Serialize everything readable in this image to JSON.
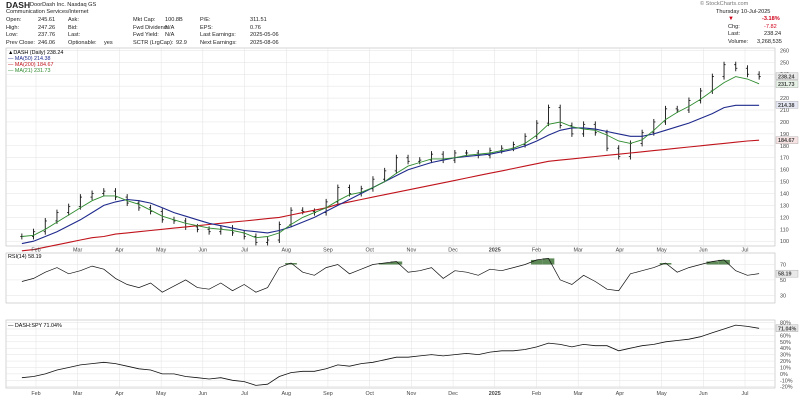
{
  "header": {
    "symbol": "DASH",
    "company": "DoorDash Inc.  Nasdaq GS",
    "sector": "Communication Services/Internet",
    "watermark": "© StockCharts.com",
    "date": "Thursday 10-Jul-2025",
    "col1": [
      {
        "label": "Open:",
        "value": "245.61"
      },
      {
        "label": "High:",
        "value": "247.26"
      },
      {
        "label": "Low:",
        "value": "237.76"
      },
      {
        "label": "Prev Close:",
        "value": "246.06"
      }
    ],
    "col2": [
      {
        "label": "Ask:",
        "value": ""
      },
      {
        "label": "Bid:",
        "value": ""
      },
      {
        "label": "Last:",
        "value": ""
      },
      {
        "label": "Optionable:",
        "value": "yes"
      }
    ],
    "col3": [
      {
        "label": "Mkt Cap:",
        "value": "100.8B"
      },
      {
        "label": "Fwd Dividend:",
        "value": "N/A"
      },
      {
        "label": "Fwd Yield:",
        "value": "N/A"
      },
      {
        "label": "SCTR (LrgCap):",
        "value": "92.9"
      }
    ],
    "col4": [
      {
        "label": "P/E:",
        "value": "311.51"
      },
      {
        "label": "EPS:",
        "value": "0.76"
      },
      {
        "label": "Last Earnings:",
        "value": "2025-05-06"
      },
      {
        "label": "Next Earnings:",
        "value": "2025-08-06"
      }
    ],
    "col5": [
      {
        "label": "",
        "value": "-3.18%"
      },
      {
        "label": "Chg:",
        "value": "-7.82"
      },
      {
        "label": "Last:",
        "value": "238.24"
      },
      {
        "label": "Volume:",
        "value": "3,268,535"
      }
    ],
    "down_color": "#d0021b"
  },
  "price_legend": [
    {
      "text": "▲DASH (Daily) 238.24",
      "color": "#000000"
    },
    {
      "text": "— MA(50) 214.38",
      "color": "#1f2a8c"
    },
    {
      "text": "— MA(200) 184.67",
      "color": "#c0141c"
    },
    {
      "text": "— MA(21) 231.73",
      "color": "#2e8b2e"
    }
  ],
  "rsi_legend": {
    "text": "RSI(14) 58.19",
    "color": "#000000"
  },
  "ratio_legend": {
    "text": "— DASH:SPY 71.04%",
    "color": "#000000"
  },
  "price_badges": [
    {
      "text": "238.24",
      "value": 238.24,
      "bg": "#e8e8e8",
      "fg": "#000000"
    },
    {
      "text": "231.73",
      "value": 231.73,
      "bg": "#e6f1e6",
      "fg": "#2e8b2e"
    },
    {
      "text": "214.38",
      "value": 214.38,
      "bg": "#e6e8f5",
      "fg": "#1f2a8c"
    },
    {
      "text": "184.67",
      "value": 184.67,
      "bg": "#f7e3e3",
      "fg": "#c0141c"
    }
  ],
  "rsi_badge": {
    "text": "58.19",
    "value": 58.19
  },
  "ratio_badge": {
    "text": "71.04%",
    "value": 71.04
  },
  "colors": {
    "candle": "#111111",
    "ma50": "#1f2a8c",
    "ma200": "#c0141c",
    "ma21": "#2e8b2e",
    "rsi_fill": "#5e8a57",
    "ratio": "#111111"
  },
  "chart_data": {
    "type": "line",
    "x_months": [
      "Feb",
      "Mar",
      "Apr",
      "May",
      "Jun",
      "Jul",
      "Aug",
      "Sep",
      "Oct",
      "Nov",
      "Dec",
      "2025",
      "Feb",
      "Mar",
      "Apr",
      "May",
      "Jun",
      "Jul"
    ],
    "price_axis": {
      "ticks": [
        100,
        110,
        120,
        130,
        140,
        150,
        160,
        170,
        180,
        190,
        200,
        210,
        220,
        230,
        240,
        250,
        260
      ],
      "ylim": [
        96,
        262
      ]
    },
    "price_close": [
      104,
      108,
      117,
      124,
      129,
      137,
      140,
      142,
      137,
      132,
      128,
      125,
      118,
      117,
      112,
      110,
      108,
      111,
      107,
      104,
      99,
      101,
      114,
      126,
      125,
      124,
      133,
      145,
      140,
      144,
      152,
      159,
      170,
      167,
      168,
      173,
      168,
      174,
      174,
      172,
      176,
      178,
      181,
      188,
      199,
      212,
      197,
      190,
      198,
      191,
      178,
      171,
      182,
      191,
      200,
      211,
      210,
      218,
      226,
      238,
      248,
      245,
      240,
      238
    ],
    "ma21": [
      104,
      105,
      110,
      116,
      122,
      128,
      134,
      138,
      138,
      134,
      131,
      126,
      121,
      118,
      115,
      113,
      111,
      110,
      109,
      107,
      103,
      104,
      107,
      114,
      120,
      124,
      128,
      134,
      139,
      141,
      145,
      150,
      157,
      163,
      166,
      169,
      169,
      170,
      172,
      173,
      174,
      176,
      178,
      182,
      189,
      198,
      200,
      196,
      194,
      193,
      189,
      184,
      182,
      185,
      193,
      202,
      208,
      213,
      219,
      226,
      233,
      238,
      236,
      232
    ],
    "ma50": [
      98,
      100,
      104,
      108,
      113,
      118,
      124,
      130,
      133,
      135,
      134,
      132,
      128,
      124,
      121,
      118,
      115,
      113,
      111,
      109,
      108,
      107,
      109,
      112,
      116,
      120,
      125,
      130,
      135,
      140,
      145,
      150,
      155,
      160,
      163,
      166,
      168,
      170,
      171,
      172,
      173,
      175,
      177,
      180,
      184,
      189,
      193,
      195,
      195,
      194,
      192,
      190,
      188,
      188,
      190,
      193,
      196,
      199,
      203,
      207,
      212,
      214,
      214,
      214
    ],
    "ma200": [
      92,
      93,
      95,
      97,
      99,
      101,
      103,
      104,
      106,
      107,
      108,
      109,
      110,
      111,
      112,
      113,
      114,
      115,
      116,
      117,
      118,
      119,
      120,
      122,
      124,
      126,
      128,
      131,
      133,
      135,
      137,
      139,
      141,
      143,
      145,
      147,
      149,
      151,
      153,
      155,
      157,
      159,
      161,
      163,
      165,
      167,
      168,
      169,
      170,
      171,
      172,
      173,
      174,
      175,
      176,
      177,
      178,
      179,
      180,
      181,
      182,
      183,
      184,
      184.67
    ],
    "rsi": {
      "ticks": [
        30,
        50,
        70
      ],
      "ylim": [
        20,
        85
      ],
      "values": [
        48,
        52,
        60,
        66,
        58,
        62,
        68,
        64,
        52,
        44,
        40,
        46,
        34,
        42,
        50,
        40,
        38,
        46,
        36,
        44,
        34,
        40,
        66,
        72,
        60,
        56,
        66,
        70,
        58,
        64,
        70,
        72,
        74,
        60,
        62,
        66,
        52,
        62,
        60,
        56,
        64,
        62,
        66,
        70,
        76,
        78,
        50,
        44,
        56,
        48,
        38,
        36,
        58,
        62,
        66,
        72,
        60,
        66,
        70,
        74,
        76,
        62,
        56,
        58.19
      ]
    },
    "ratio": {
      "ticks": [
        -20,
        -10,
        0,
        10,
        20,
        30,
        40,
        50,
        60,
        70,
        80
      ],
      "unit": "%",
      "ylim": [
        -22,
        84
      ],
      "values": [
        -6,
        -4,
        0,
        6,
        10,
        14,
        16,
        18,
        16,
        12,
        8,
        6,
        0,
        0,
        -4,
        -6,
        -8,
        -6,
        -10,
        -12,
        -18,
        -16,
        -4,
        2,
        4,
        4,
        8,
        14,
        12,
        16,
        18,
        22,
        26,
        26,
        28,
        30,
        28,
        30,
        32,
        30,
        34,
        36,
        36,
        38,
        42,
        48,
        46,
        42,
        46,
        44,
        44,
        36,
        40,
        44,
        46,
        50,
        52,
        54,
        58,
        64,
        70,
        76,
        74,
        71.04
      ]
    }
  }
}
